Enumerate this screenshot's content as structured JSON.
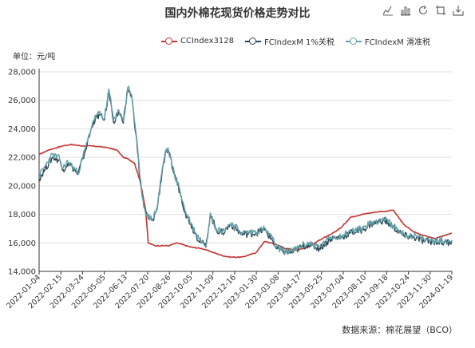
{
  "title": "国内外棉花现货价格走势对比",
  "unit_label": "单位：元/吨",
  "source": "数据来源：棉花展望（BCO）",
  "toolbox": [
    "line-chart-icon",
    "bar-chart-icon",
    "refresh-icon",
    "restore-icon",
    "save-image-icon"
  ],
  "chart_data": {
    "type": "line",
    "ylim": [
      14000,
      28000
    ],
    "yticks": [
      14000,
      16000,
      18000,
      20000,
      22000,
      24000,
      26000,
      28000
    ],
    "ytick_labels": [
      "14,000",
      "16,000",
      "18,000",
      "20,000",
      "22,000",
      "24,000",
      "26,000",
      "28,000"
    ],
    "xlim": [
      "2022-01-04",
      "2024-01-19"
    ],
    "xtick_labels": [
      "2022-01-04",
      "2022-02-15",
      "2022-03-24",
      "2022-05-05",
      "2022-06-13",
      "2022-07-20",
      "2022-08-26",
      "2022-10-05",
      "2022-11-09",
      "2022-12-16",
      "2023-01-30",
      "2023-03-08",
      "2023-04-17",
      "2023-05-25",
      "2023-07-04",
      "2023-08-10",
      "2023-09-18",
      "2023-10-24",
      "2023-11-30",
      "2024-01-19"
    ],
    "grid": "horizontal",
    "legend_position": "top",
    "series": [
      {
        "name": "CCIndex3128",
        "color": "#c23531",
        "points": [
          [
            "2022-01-04",
            22200
          ],
          [
            "2022-01-20",
            22500
          ],
          [
            "2022-02-15",
            22800
          ],
          [
            "2022-03-01",
            22900
          ],
          [
            "2022-03-24",
            22800
          ],
          [
            "2022-04-10",
            22800
          ],
          [
            "2022-05-05",
            22700
          ],
          [
            "2022-05-25",
            22500
          ],
          [
            "2022-06-05",
            22000
          ],
          [
            "2022-06-13",
            21900
          ],
          [
            "2022-06-25",
            21600
          ],
          [
            "2022-07-05",
            20400
          ],
          [
            "2022-07-15",
            18400
          ],
          [
            "2022-07-20",
            16000
          ],
          [
            "2022-08-01",
            15800
          ],
          [
            "2022-08-26",
            15800
          ],
          [
            "2022-09-10",
            16000
          ],
          [
            "2022-10-05",
            15700
          ],
          [
            "2022-10-25",
            15600
          ],
          [
            "2022-11-09",
            15400
          ],
          [
            "2022-12-01",
            15100
          ],
          [
            "2022-12-16",
            15000
          ],
          [
            "2023-01-05",
            15000
          ],
          [
            "2023-01-30",
            15300
          ],
          [
            "2023-02-15",
            16100
          ],
          [
            "2023-03-08",
            15900
          ],
          [
            "2023-03-25",
            15600
          ],
          [
            "2023-04-17",
            15500
          ],
          [
            "2023-05-10",
            15800
          ],
          [
            "2023-05-25",
            16200
          ],
          [
            "2023-06-15",
            16600
          ],
          [
            "2023-07-04",
            17100
          ],
          [
            "2023-07-20",
            17800
          ],
          [
            "2023-08-10",
            18000
          ],
          [
            "2023-08-25",
            18100
          ],
          [
            "2023-09-10",
            18200
          ],
          [
            "2023-09-18",
            18200
          ],
          [
            "2023-10-05",
            18300
          ],
          [
            "2023-10-24",
            17300
          ],
          [
            "2023-11-10",
            16800
          ],
          [
            "2023-11-30",
            16500
          ],
          [
            "2023-12-20",
            16300
          ],
          [
            "2024-01-05",
            16500
          ],
          [
            "2024-01-19",
            16700
          ]
        ]
      },
      {
        "name": "FCIndexM 1%关税",
        "color": "#2f4554",
        "points": [
          [
            "2022-01-04",
            20500
          ],
          [
            "2022-01-15",
            21200
          ],
          [
            "2022-01-28",
            22000
          ],
          [
            "2022-02-10",
            21800
          ],
          [
            "2022-02-15",
            21100
          ],
          [
            "2022-02-25",
            21600
          ],
          [
            "2022-03-05",
            21300
          ],
          [
            "2022-03-15",
            20800
          ],
          [
            "2022-03-24",
            21900
          ],
          [
            "2022-04-01",
            23000
          ],
          [
            "2022-04-12",
            24500
          ],
          [
            "2022-04-22",
            25000
          ],
          [
            "2022-05-01",
            24600
          ],
          [
            "2022-05-05",
            25300
          ],
          [
            "2022-05-10",
            26700
          ],
          [
            "2022-05-18",
            24500
          ],
          [
            "2022-05-28",
            25200
          ],
          [
            "2022-06-05",
            24400
          ],
          [
            "2022-06-10",
            25800
          ],
          [
            "2022-06-13",
            26800
          ],
          [
            "2022-06-20",
            26300
          ],
          [
            "2022-06-28",
            23600
          ],
          [
            "2022-07-05",
            20500
          ],
          [
            "2022-07-12",
            18500
          ],
          [
            "2022-07-20",
            17700
          ],
          [
            "2022-07-28",
            17600
          ],
          [
            "2022-08-05",
            18400
          ],
          [
            "2022-08-15",
            21300
          ],
          [
            "2022-08-22",
            22500
          ],
          [
            "2022-08-26",
            22300
          ],
          [
            "2022-09-05",
            20800
          ],
          [
            "2022-09-15",
            19600
          ],
          [
            "2022-09-25",
            18100
          ],
          [
            "2022-10-05",
            17300
          ],
          [
            "2022-10-15",
            16500
          ],
          [
            "2022-10-25",
            16000
          ],
          [
            "2022-11-01",
            15700
          ],
          [
            "2022-11-09",
            18000
          ],
          [
            "2022-11-20",
            16900
          ],
          [
            "2022-12-01",
            16700
          ],
          [
            "2022-12-16",
            17300
          ],
          [
            "2023-01-05",
            16600
          ],
          [
            "2023-01-30",
            16700
          ],
          [
            "2023-02-15",
            16900
          ],
          [
            "2023-03-01",
            16200
          ],
          [
            "2023-03-08",
            15600
          ],
          [
            "2023-03-20",
            15400
          ],
          [
            "2023-04-05",
            15300
          ],
          [
            "2023-04-17",
            15600
          ],
          [
            "2023-05-05",
            15900
          ],
          [
            "2023-05-25",
            15600
          ],
          [
            "2023-06-15",
            16300
          ],
          [
            "2023-07-04",
            16400
          ],
          [
            "2023-07-20",
            16700
          ],
          [
            "2023-08-10",
            16900
          ],
          [
            "2023-08-25",
            17300
          ],
          [
            "2023-09-18",
            17600
          ],
          [
            "2023-10-05",
            17100
          ],
          [
            "2023-10-24",
            16500
          ],
          [
            "2023-11-10",
            16400
          ],
          [
            "2023-11-30",
            16100
          ],
          [
            "2023-12-20",
            16100
          ],
          [
            "2024-01-05",
            16000
          ],
          [
            "2024-01-19",
            16100
          ]
        ]
      },
      {
        "name": "FCIndexM 滑准税",
        "color": "#61a0a8",
        "points": [
          [
            "2022-01-04",
            20700
          ],
          [
            "2022-01-15",
            21400
          ],
          [
            "2022-01-28",
            22200
          ],
          [
            "2022-02-10",
            21900
          ],
          [
            "2022-02-15",
            21200
          ],
          [
            "2022-02-25",
            21700
          ],
          [
            "2022-03-05",
            21400
          ],
          [
            "2022-03-15",
            20900
          ],
          [
            "2022-03-24",
            22000
          ],
          [
            "2022-04-01",
            23100
          ],
          [
            "2022-04-12",
            24600
          ],
          [
            "2022-04-22",
            25100
          ],
          [
            "2022-05-01",
            24700
          ],
          [
            "2022-05-05",
            25400
          ],
          [
            "2022-05-10",
            26800
          ],
          [
            "2022-05-18",
            24600
          ],
          [
            "2022-05-28",
            25300
          ],
          [
            "2022-06-05",
            24500
          ],
          [
            "2022-06-10",
            25900
          ],
          [
            "2022-06-13",
            26900
          ],
          [
            "2022-06-20",
            26400
          ],
          [
            "2022-06-28",
            23700
          ],
          [
            "2022-07-05",
            20600
          ],
          [
            "2022-07-12",
            18600
          ],
          [
            "2022-07-20",
            17800
          ],
          [
            "2022-07-28",
            17700
          ],
          [
            "2022-08-05",
            18500
          ],
          [
            "2022-08-15",
            21400
          ],
          [
            "2022-08-22",
            22600
          ],
          [
            "2022-08-26",
            22400
          ],
          [
            "2022-09-05",
            20900
          ],
          [
            "2022-09-15",
            19700
          ],
          [
            "2022-09-25",
            18200
          ],
          [
            "2022-10-05",
            17400
          ],
          [
            "2022-10-15",
            16600
          ],
          [
            "2022-10-25",
            16100
          ],
          [
            "2022-11-01",
            15800
          ],
          [
            "2022-11-09",
            18100
          ],
          [
            "2022-11-20",
            17000
          ],
          [
            "2022-12-01",
            16800
          ],
          [
            "2022-12-16",
            17400
          ],
          [
            "2023-01-05",
            16700
          ],
          [
            "2023-01-30",
            16800
          ],
          [
            "2023-02-15",
            17000
          ],
          [
            "2023-03-01",
            16300
          ],
          [
            "2023-03-08",
            15700
          ],
          [
            "2023-03-20",
            15500
          ],
          [
            "2023-04-05",
            15400
          ],
          [
            "2023-04-17",
            15700
          ],
          [
            "2023-05-05",
            16000
          ],
          [
            "2023-05-25",
            15700
          ],
          [
            "2023-06-15",
            16400
          ],
          [
            "2023-07-04",
            16500
          ],
          [
            "2023-07-20",
            16800
          ],
          [
            "2023-08-10",
            17000
          ],
          [
            "2023-08-25",
            17400
          ],
          [
            "2023-09-18",
            17700
          ],
          [
            "2023-10-05",
            17200
          ],
          [
            "2023-10-24",
            16600
          ],
          [
            "2023-11-10",
            16500
          ],
          [
            "2023-11-30",
            16200
          ],
          [
            "2023-12-20",
            16200
          ],
          [
            "2024-01-05",
            16100
          ],
          [
            "2024-01-19",
            16200
          ]
        ]
      }
    ]
  }
}
